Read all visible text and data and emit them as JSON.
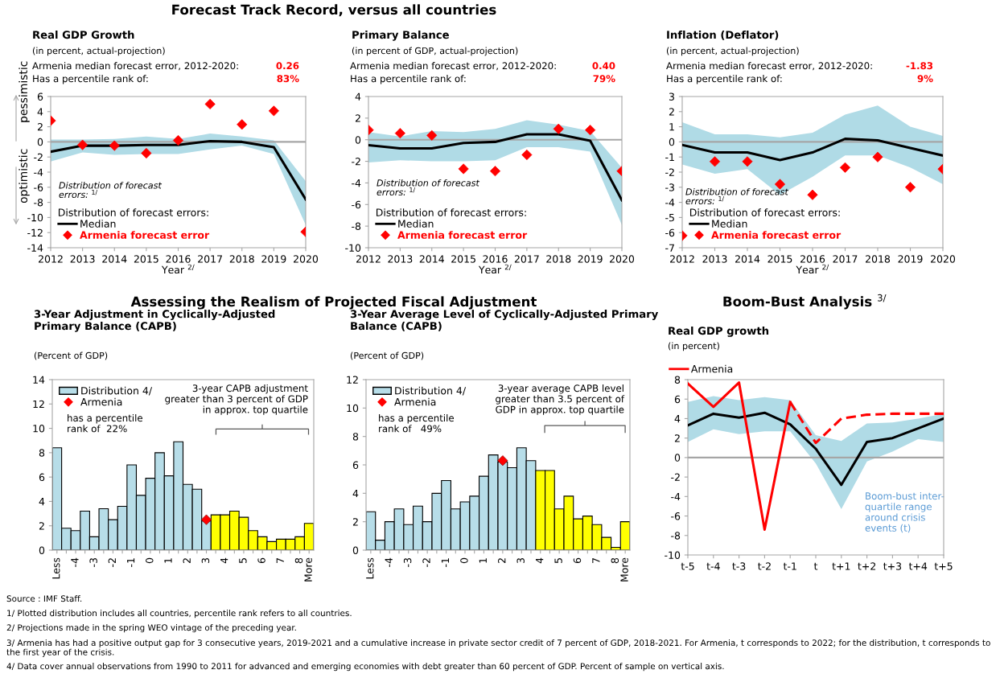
{
  "chart_data": [
    {
      "type": "line",
      "title": "Real GDP Growth",
      "subtitle": "(in percent, actual-projection)",
      "xlabel": "Year $^{2/}$",
      "legend_title": "Distribution of forecast errors:",
      "legend": "bottom left",
      "categories": [
        "2012",
        "2013",
        "2014",
        "2015",
        "2016",
        "2017",
        "2018",
        "2019",
        "2020"
      ],
      "ylim": [
        -14,
        6
      ],
      "yticks": [
        -14,
        -12,
        -10,
        -8,
        -6,
        -4,
        -2,
        0,
        2,
        4,
        6
      ],
      "series": [
        {
          "name": "Median",
          "color": "#000000",
          "values": [
            -1.3,
            -0.5,
            -0.5,
            -0.4,
            -0.4,
            0.1,
            0.0,
            -0.7,
            -7.6
          ],
          "lower": [
            -2.6,
            -1.4,
            -1.7,
            -1.6,
            -1.6,
            -1.0,
            -0.5,
            -1.6,
            -11.0
          ],
          "upper": [
            0.3,
            0.3,
            0.4,
            0.7,
            0.4,
            1.1,
            0.7,
            0.2,
            -5.2
          ]
        },
        {
          "name": "Armenia forecast error",
          "type": "scatter",
          "marker": "diamond",
          "color": "#ff0000",
          "values": [
            2.8,
            -0.4,
            -0.5,
            -1.5,
            0.2,
            5.0,
            2.3,
            4.1,
            -11.9
          ]
        }
      ],
      "ref_lines": [
        {
          "axis": "y",
          "value": 0,
          "color": "#a6a6a6"
        }
      ],
      "annotations": [
        "Armenia median forecast error, 2012-2020:",
        "0.26",
        "Has a percentile rank of:",
        "83%",
        "Distribution of forecast\nerrors: $^{1/}$",
        "pessimistic",
        "optimistic",
        "Forecast Track Record, versus all countries"
      ]
    },
    {
      "type": "line",
      "title": "Primary Balance",
      "subtitle": "(in percent of GDP, actual-projection)",
      "xlabel": "Year $^{2/}$",
      "legend_title": "Distribution of forecast errors:",
      "legend": "bottom left",
      "categories": [
        "2012",
        "2013",
        "2014",
        "2015",
        "2016",
        "2017",
        "2018",
        "2019",
        "2020"
      ],
      "ylim": [
        -10,
        4
      ],
      "yticks": [
        -10,
        -8,
        -6,
        -4,
        -2,
        0,
        2,
        4
      ],
      "series": [
        {
          "name": "Median",
          "color": "#000000",
          "values": [
            -0.5,
            -0.8,
            -0.8,
            -0.3,
            -0.2,
            0.5,
            0.5,
            -0.1,
            -5.6
          ],
          "lower": [
            -2.1,
            -1.9,
            -2.0,
            -2.0,
            -1.9,
            -0.7,
            -0.7,
            -1.1,
            -7.9
          ],
          "upper": [
            0.7,
            0.3,
            0.8,
            0.7,
            1.0,
            1.8,
            1.4,
            0.8,
            -2.6
          ]
        },
        {
          "name": "Armenia forecast error",
          "type": "scatter",
          "marker": "diamond",
          "color": "#ff0000",
          "values": [
            0.9,
            0.6,
            0.4,
            -2.7,
            -2.9,
            -1.4,
            1.0,
            0.9,
            -2.9
          ]
        }
      ],
      "ref_lines": [
        {
          "axis": "y",
          "value": 0,
          "color": "#a6a6a6"
        }
      ],
      "annotations": [
        "Armenia median forecast error, 2012-2020:",
        "0.40",
        "Has a percentile rank of:",
        "79%",
        "Distribution of forecast\nerrors: $^{1/}$"
      ]
    },
    {
      "type": "line",
      "title": "Inflation (Deflator)",
      "subtitle": "(in percent, actual-projection)",
      "xlabel": "Year $^{2/}$",
      "legend_title": "Distribution of forecast errors:",
      "legend": "bottom left",
      "categories": [
        "2012",
        "2013",
        "2014",
        "2015",
        "2016",
        "2017",
        "2018",
        "2019",
        "2020"
      ],
      "ylim": [
        -7,
        3
      ],
      "yticks": [
        -7,
        -6,
        -5,
        -4,
        -3,
        -2,
        -1,
        0,
        1,
        2,
        3
      ],
      "series": [
        {
          "name": "Median",
          "color": "#000000",
          "values": [
            -0.2,
            -0.7,
            -0.7,
            -1.2,
            -0.7,
            0.2,
            0.1,
            -0.4,
            -0.9
          ],
          "lower": [
            -1.5,
            -2.1,
            -1.8,
            -3.5,
            -2.3,
            -0.9,
            -0.9,
            -1.7,
            -2.8
          ],
          "upper": [
            1.3,
            0.5,
            0.5,
            0.3,
            0.6,
            1.8,
            2.4,
            1.0,
            0.4
          ]
        },
        {
          "name": "Armenia forecast error",
          "type": "scatter",
          "marker": "diamond",
          "color": "#ff0000",
          "values": [
            -6.2,
            -1.3,
            -1.3,
            -2.8,
            -3.5,
            -1.7,
            -1.0,
            -3.0,
            -1.8
          ]
        }
      ],
      "ref_lines": [
        {
          "axis": "y",
          "value": 0,
          "color": "#a6a6a6"
        }
      ],
      "annotations": [
        "Armenia median forecast error, 2012-2020:",
        "-1.83",
        "Has a percentile rank of:",
        "9%",
        "Distribution of forecast\nerrors: $^{1/}$"
      ]
    },
    {
      "type": "bar",
      "title": "3-Year Adjustment in Cyclically-Adjusted\nPrimary Balance (CAPB)",
      "subtitle": "(Percent of GDP)",
      "legend": "top left",
      "categories": [
        "Less",
        null,
        "-4",
        null,
        "-3",
        null,
        "-2",
        null,
        "-1",
        null,
        "0",
        null,
        "1",
        null,
        "2",
        null,
        "3",
        null,
        "4",
        null,
        "5",
        null,
        "6",
        null,
        "7",
        null,
        "8",
        "More"
      ],
      "ylim": [
        0,
        14
      ],
      "yticks": [
        0,
        2,
        4,
        6,
        8,
        10,
        12,
        14
      ],
      "series": [
        {
          "name": "Distribution 4/",
          "colors": [
            "#b7dde8",
            "#b7dde8",
            "#b7dde8",
            "#b7dde8",
            "#b7dde8",
            "#b7dde8",
            "#b7dde8",
            "#b7dde8",
            "#b7dde8",
            "#b7dde8",
            "#b7dde8",
            "#b7dde8",
            "#b7dde8",
            "#b7dde8",
            "#b7dde8",
            "#b7dde8",
            "#b7dde8",
            "#ffff00",
            "#ffff00",
            "#ffff00",
            "#ffff00",
            "#ffff00",
            "#ffff00",
            "#ffff00",
            "#ffff00",
            "#ffff00",
            "#ffff00",
            "#ffff00"
          ],
          "values": [
            8.4,
            1.8,
            1.6,
            3.2,
            1.1,
            3.4,
            2.5,
            3.6,
            7.0,
            4.5,
            5.9,
            8.0,
            6.1,
            8.9,
            5.4,
            5.0,
            2.4,
            2.9,
            2.9,
            3.2,
            2.7,
            1.6,
            1.1,
            0.7,
            0.9,
            0.9,
            1.1,
            2.2
          ]
        },
        {
          "name": "Armenia",
          "type": "scatter",
          "marker": "diamond",
          "color": "#ff0000",
          "x": [
            "3"
          ],
          "values": [
            2.5
          ]
        }
      ],
      "annotations": [
        "has a percentile\nrank of  22%",
        "3-year CAPB adjustment\ngreater than 3 percent of GDP\nin approx. top quartile",
        "Assessing the Realism of Projected Fiscal Adjustment"
      ]
    },
    {
      "type": "bar",
      "title": "3-Year Average Level of Cyclically-Adjusted Primary\nBalance (CAPB)",
      "subtitle": "(Percent of GDP)",
      "legend": "top left",
      "categories": [
        "Less",
        null,
        "-4",
        null,
        "-3",
        null,
        "-2",
        null,
        "-1",
        null,
        "0",
        null,
        "1",
        null,
        "2",
        null,
        "3",
        null,
        "4",
        null,
        "5",
        null,
        "6",
        null,
        "7",
        null,
        "8",
        "More"
      ],
      "ylim": [
        0,
        12
      ],
      "yticks": [
        0,
        2,
        4,
        6,
        8,
        10,
        12
      ],
      "series": [
        {
          "name": "Distribution 4/",
          "colors": [
            "#b7dde8",
            "#b7dde8",
            "#b7dde8",
            "#b7dde8",
            "#b7dde8",
            "#b7dde8",
            "#b7dde8",
            "#b7dde8",
            "#b7dde8",
            "#b7dde8",
            "#b7dde8",
            "#b7dde8",
            "#b7dde8",
            "#b7dde8",
            "#b7dde8",
            "#b7dde8",
            "#b7dde8",
            "#b7dde8",
            "#ffff00",
            "#ffff00",
            "#ffff00",
            "#ffff00",
            "#ffff00",
            "#ffff00",
            "#ffff00",
            "#ffff00",
            "#ffff00",
            "#ffff00"
          ],
          "values": [
            2.7,
            0.7,
            2.0,
            2.9,
            1.8,
            3.1,
            2.0,
            4.0,
            4.9,
            2.9,
            3.4,
            3.8,
            5.2,
            6.7,
            6.2,
            5.8,
            7.2,
            6.3,
            5.6,
            5.6,
            2.9,
            3.8,
            2.2,
            2.4,
            1.8,
            0.9,
            0.2,
            2.0
          ]
        },
        {
          "name": "Armenia",
          "type": "scatter",
          "marker": "diamond",
          "color": "#ff0000",
          "x": [
            "2"
          ],
          "values": [
            6.3
          ]
        }
      ],
      "annotations": [
        "has a percentile\nrank of   49%",
        "3-year average CAPB level\ngreater than 3.5 percent of\nGDP in approx. top quartile"
      ]
    },
    {
      "type": "line",
      "title": "Real GDP growth",
      "subtitle": "(in percent)",
      "legend": "top left",
      "categories": [
        "t-5",
        "t-4",
        "t-3",
        "t-2",
        "t-1",
        "t",
        "t+1",
        "t+2",
        "t+3",
        "t+4",
        "t+5"
      ],
      "ylim": [
        -10,
        8
      ],
      "yticks": [
        -10,
        -8,
        -6,
        -4,
        -2,
        0,
        2,
        4,
        6,
        8
      ],
      "series": [
        {
          "color": "#000000",
          "values": [
            3.3,
            4.5,
            4.1,
            4.6,
            3.4,
            0.9,
            -2.8,
            1.6,
            2.0,
            3.0,
            4.0
          ],
          "lower": [
            1.6,
            2.9,
            2.4,
            2.7,
            2.7,
            -0.6,
            -5.3,
            -0.4,
            0.6,
            1.9,
            1.6
          ],
          "upper": [
            5.7,
            6.3,
            5.9,
            6.2,
            5.9,
            2.3,
            1.7,
            3.5,
            3.6,
            4.0,
            4.5
          ]
        },
        {
          "name": "Armenia",
          "color": "#ff0000",
          "line_style": "solid",
          "values": [
            7.6,
            5.2,
            7.7,
            -7.4,
            5.7,
            null,
            null,
            null,
            null,
            null,
            null
          ]
        },
        {
          "color": "#ff0000",
          "line_style": "dashed",
          "values": [
            null,
            null,
            null,
            null,
            5.7,
            1.5,
            4.0,
            4.4,
            4.5,
            4.5,
            4.5
          ]
        }
      ],
      "ref_lines": [
        {
          "axis": "y",
          "value": 0,
          "color": "#a6a6a6"
        }
      ],
      "annotations": [
        "Boom-Bust Analysis $^{3/}$",
        "Boom-bust inter-\nquartile range\naround crisis\nevents (t)",
        "Source : IMF Staff.",
        "1/ Plotted distribution includes all countries, percentile rank refers to all countries.",
        "2/ Projections made in the spring WEO vintage of the preceding year.",
        "3/ Armenia has had a positive output gap for 3 consecutive years, 2019-2021 and a cumulative increase in private sector credit of 7 percent of GDP, 2018-2021. For Armenia, t corresponds to 2022; for the distribution, t corresponds to the first year of the crisis.",
        "4/ Data cover annual observations from 1990 to 2011 for advanced and emerging economies with debt greater than 60 percent of GDP. Percent of sample on vertical axis."
      ]
    }
  ]
}
